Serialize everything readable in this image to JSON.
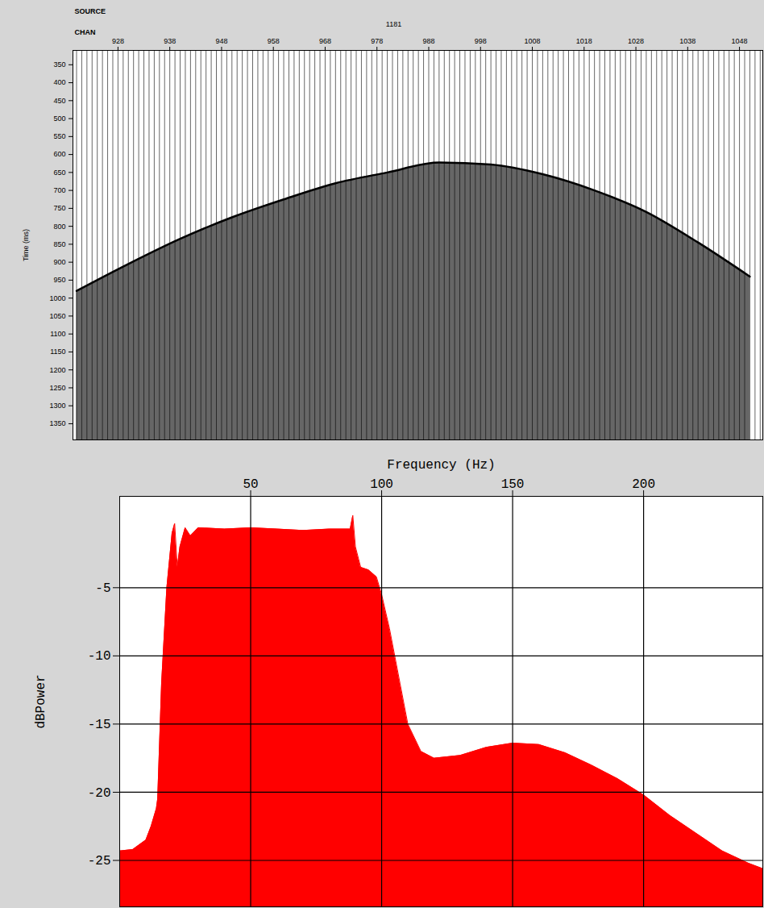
{
  "chart_data": [
    {
      "type": "area",
      "source_label": "SOURCE",
      "channel_label": "CHAN",
      "source": 1181,
      "ylabel": "Time (ms)",
      "x": [
        920,
        930,
        940,
        950,
        960,
        970,
        980,
        990,
        1000,
        1010,
        1020,
        1030,
        1040,
        1050
      ],
      "values": [
        980,
        905,
        835,
        775,
        725,
        680,
        650,
        622,
        628,
        655,
        700,
        760,
        845,
        940
      ],
      "xlim": [
        919.3,
        1052.5
      ],
      "ylim": [
        310,
        1395
      ],
      "xticks": [
        928,
        938,
        948,
        958,
        968,
        978,
        988,
        998,
        1008,
        1018,
        1028,
        1038,
        1048
      ],
      "yticks": [
        350,
        400,
        450,
        500,
        550,
        600,
        650,
        700,
        750,
        800,
        850,
        900,
        950,
        1000,
        1050,
        1100,
        1150,
        1200,
        1250,
        1300,
        1350
      ],
      "color": "#000000",
      "grid": true
    },
    {
      "type": "area",
      "xlabel": "Frequency (Hz)",
      "ylabel": "dBPower",
      "x": [
        0,
        5,
        10,
        12,
        14,
        14.5,
        16,
        18,
        20,
        21,
        22,
        23,
        25,
        27,
        30,
        40,
        50,
        60,
        70,
        80,
        88,
        89,
        90,
        92,
        95,
        98,
        100,
        103,
        107,
        110,
        115,
        120,
        130,
        140,
        150,
        160,
        170,
        180,
        190,
        200,
        210,
        220,
        230,
        240,
        245.5
      ],
      "values": [
        -24.3,
        -24.2,
        -23.5,
        -22.5,
        -21.2,
        -20.5,
        -12,
        -5,
        -1,
        -0.3,
        -3.5,
        -2,
        -0.6,
        -1.2,
        -0.6,
        -0.7,
        -0.6,
        -0.7,
        -0.8,
        -0.7,
        -0.7,
        0.3,
        -2,
        -3.5,
        -3.7,
        -4.2,
        -5.5,
        -8,
        -12,
        -15,
        -17,
        -17.5,
        -17.3,
        -16.7,
        -16.4,
        -16.5,
        -17.1,
        -18,
        -19,
        -20.2,
        -21.7,
        -23,
        -24.3,
        -25.2,
        -25.6
      ],
      "xlim": [
        0,
        245.5
      ],
      "ylim": [
        -28.4,
        1.7
      ],
      "xticks": [
        50,
        100,
        150,
        200
      ],
      "yticks": [
        -5,
        -10,
        -15,
        -20,
        -25
      ],
      "color": "#ff0000",
      "grid": true
    }
  ]
}
